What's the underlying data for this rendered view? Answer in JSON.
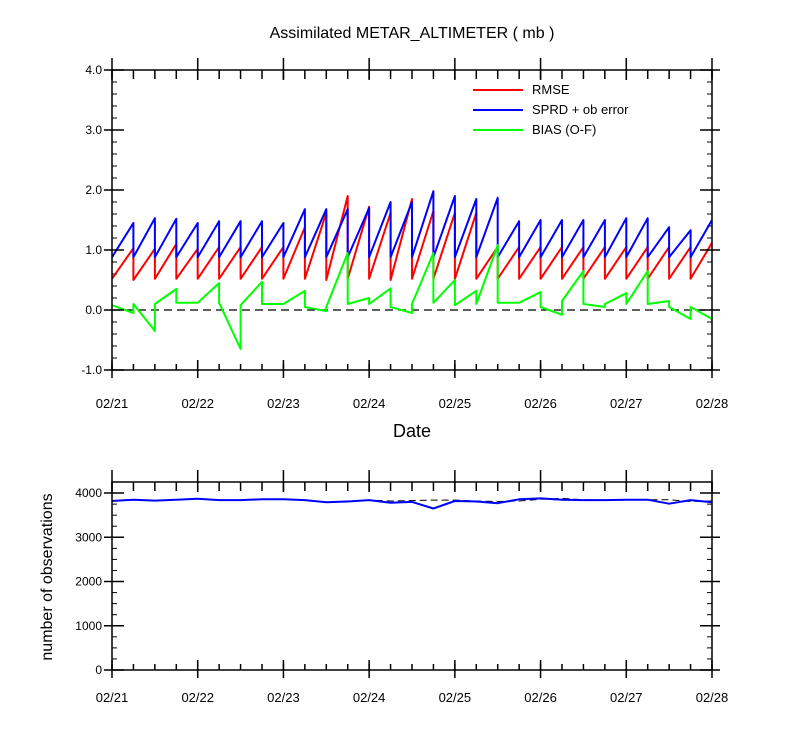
{
  "chart_data": [
    {
      "type": "line",
      "title": "Assimilated METAR_ALTIMETER ( mb )",
      "xlabel": "Date",
      "ylabel": "",
      "ylim": [
        -1.0,
        4.0
      ],
      "xlim": [
        0,
        7
      ],
      "x_tick_labels": [
        "02/21",
        "02/22",
        "02/23",
        "02/24",
        "02/25",
        "02/26",
        "02/27",
        "02/28"
      ],
      "y_tick_labels": [
        "-1.0",
        "0.0",
        "1.0",
        "2.0",
        "3.0",
        "4.0"
      ],
      "reference_line": 0.0,
      "legend_position": "top-right",
      "series": [
        {
          "name": "RMSE",
          "color": "#ff0000",
          "x": [
            0,
            0.25,
            0.25,
            0.5,
            0.5,
            0.75,
            0.75,
            1.0,
            1.0,
            1.25,
            1.25,
            1.5,
            1.5,
            1.75,
            1.75,
            2.0,
            2.0,
            2.25,
            2.25,
            2.5,
            2.5,
            2.75,
            2.75,
            3.0,
            3.0,
            3.25,
            3.25,
            3.5,
            3.5,
            3.75,
            3.75,
            4.0,
            4.0,
            4.25,
            4.25,
            4.5,
            4.5,
            4.75,
            4.75,
            5.0,
            5.0,
            5.25,
            5.25,
            5.5,
            5.5,
            5.75,
            5.75,
            6.0,
            6.0,
            6.25,
            6.25,
            6.5,
            6.5,
            6.75,
            6.75,
            7.0
          ],
          "y": [
            0.52,
            1.03,
            0.5,
            1.02,
            0.52,
            1.1,
            0.52,
            1.02,
            0.52,
            1.05,
            0.52,
            1.05,
            0.52,
            1.05,
            0.52,
            1.05,
            0.52,
            1.38,
            0.52,
            1.62,
            0.5,
            1.9,
            0.52,
            1.72,
            0.52,
            1.62,
            0.5,
            1.85,
            0.52,
            1.65,
            0.52,
            1.62,
            0.52,
            1.62,
            0.52,
            1.05,
            0.52,
            1.05,
            0.52,
            1.05,
            0.52,
            1.05,
            0.52,
            1.05,
            0.52,
            1.05,
            0.52,
            1.05,
            0.52,
            1.05,
            0.52,
            1.05,
            0.52,
            1.05,
            0.52,
            1.12
          ]
        },
        {
          "name": "SPRD + ob error",
          "color": "#0000ff",
          "x": [
            0,
            0.25,
            0.25,
            0.5,
            0.5,
            0.75,
            0.75,
            1.0,
            1.0,
            1.25,
            1.25,
            1.5,
            1.5,
            1.75,
            1.75,
            2.0,
            2.0,
            2.25,
            2.25,
            2.5,
            2.5,
            2.75,
            2.75,
            3.0,
            3.0,
            3.25,
            3.25,
            3.5,
            3.5,
            3.75,
            3.75,
            4.0,
            4.0,
            4.25,
            4.25,
            4.5,
            4.5,
            4.75,
            4.75,
            5.0,
            5.0,
            5.25,
            5.25,
            5.5,
            5.5,
            5.75,
            5.75,
            6.0,
            6.0,
            6.25,
            6.25,
            6.5,
            6.5,
            6.75,
            6.75,
            7.0
          ],
          "y": [
            0.88,
            1.45,
            0.88,
            1.53,
            0.88,
            1.52,
            0.88,
            1.45,
            0.88,
            1.48,
            0.88,
            1.48,
            0.88,
            1.48,
            0.88,
            1.45,
            0.88,
            1.68,
            0.88,
            1.68,
            0.88,
            1.68,
            0.88,
            1.7,
            0.88,
            1.8,
            0.88,
            1.8,
            0.88,
            1.98,
            0.88,
            1.9,
            0.88,
            1.85,
            0.88,
            1.87,
            0.88,
            1.48,
            0.88,
            1.5,
            0.88,
            1.5,
            0.88,
            1.5,
            0.88,
            1.5,
            0.88,
            1.53,
            0.88,
            1.53,
            0.88,
            1.38,
            0.88,
            1.33,
            0.88,
            1.5
          ]
        },
        {
          "name": "BIAS (O-F)",
          "color": "#00ff00",
          "x": [
            0,
            0.25,
            0.25,
            0.5,
            0.5,
            0.75,
            0.75,
            1.0,
            1.0,
            1.25,
            1.25,
            1.5,
            1.5,
            1.75,
            1.75,
            2.0,
            2.0,
            2.25,
            2.25,
            2.5,
            2.5,
            2.75,
            2.75,
            3.0,
            3.0,
            3.25,
            3.25,
            3.5,
            3.5,
            3.75,
            3.75,
            4.0,
            4.0,
            4.25,
            4.25,
            4.5,
            4.5,
            4.75,
            4.75,
            5.0,
            5.0,
            5.25,
            5.25,
            5.5,
            5.5,
            5.75,
            5.75,
            6.0,
            6.0,
            6.25,
            6.25,
            6.5,
            6.5,
            6.75,
            6.75,
            7.0
          ],
          "y": [
            0.08,
            -0.05,
            0.1,
            -0.35,
            0.1,
            0.35,
            0.12,
            0.12,
            0.12,
            0.45,
            0.12,
            -0.65,
            0.08,
            0.47,
            0.1,
            0.1,
            0.1,
            0.32,
            0.05,
            -0.02,
            0.05,
            0.95,
            0.1,
            0.2,
            0.1,
            0.36,
            0.05,
            -0.05,
            0.1,
            0.95,
            0.12,
            0.5,
            0.08,
            0.32,
            0.1,
            1.08,
            0.12,
            0.12,
            0.12,
            0.3,
            0.05,
            -0.08,
            0.15,
            0.65,
            0.1,
            0.05,
            0.1,
            0.28,
            0.1,
            0.65,
            0.1,
            0.15,
            0.05,
            -0.15,
            0.05,
            -0.15
          ]
        }
      ]
    },
    {
      "type": "line",
      "title": "",
      "xlabel": "",
      "ylabel": "number of observations",
      "ylim": [
        0,
        4250
      ],
      "xlim": [
        0,
        7
      ],
      "x_tick_labels": [
        "02/21",
        "02/22",
        "02/23",
        "02/24",
        "02/25",
        "02/26",
        "02/27",
        "02/28"
      ],
      "y_tick_labels": [
        "0",
        "1000",
        "2000",
        "3000",
        "4000"
      ],
      "series": [
        {
          "name": "reference",
          "color": "#000000",
          "dashed": true,
          "x": [
            0,
            0.25,
            0.5,
            0.75,
            1.0,
            1.25,
            1.5,
            1.75,
            2.0,
            2.25,
            2.5,
            2.75,
            3.0,
            3.25,
            3.5,
            3.75,
            4.0,
            4.25,
            4.5,
            4.75,
            5.0,
            5.25,
            5.5,
            5.75,
            6.0,
            6.25,
            6.5,
            6.75,
            7.0
          ],
          "y": [
            3820,
            3850,
            3830,
            3850,
            3870,
            3840,
            3840,
            3860,
            3860,
            3840,
            3800,
            3820,
            3840,
            3820,
            3830,
            3840,
            3840,
            3820,
            3810,
            3820,
            3860,
            3880,
            3850,
            3840,
            3840,
            3850,
            3850,
            3810,
            3820
          ]
        },
        {
          "name": "observations",
          "color": "#0000ff",
          "x": [
            0,
            0.25,
            0.5,
            0.75,
            1.0,
            1.25,
            1.5,
            1.75,
            2.0,
            2.25,
            2.5,
            2.75,
            3.0,
            3.25,
            3.5,
            3.75,
            4.0,
            4.25,
            4.5,
            4.75,
            5.0,
            5.25,
            5.5,
            5.75,
            6.0,
            6.25,
            6.5,
            6.75,
            7.0
          ],
          "y": [
            3820,
            3850,
            3830,
            3850,
            3870,
            3840,
            3840,
            3860,
            3860,
            3840,
            3790,
            3810,
            3840,
            3780,
            3800,
            3650,
            3820,
            3810,
            3770,
            3860,
            3880,
            3850,
            3840,
            3840,
            3850,
            3850,
            3760,
            3840,
            3790
          ]
        }
      ]
    }
  ]
}
